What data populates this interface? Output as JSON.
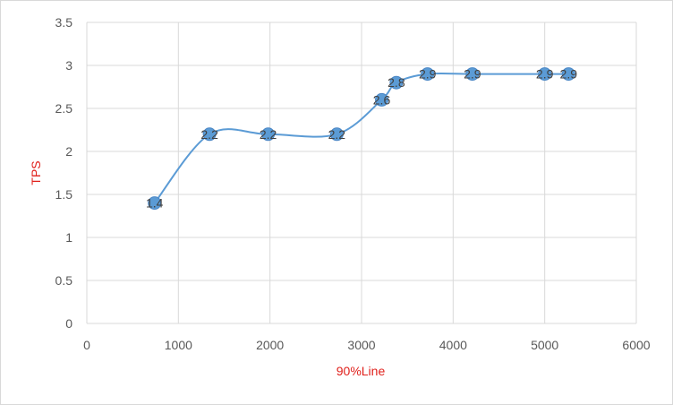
{
  "chart_data": {
    "type": "scatter",
    "title": "",
    "xlabel": "90%Line",
    "ylabel": "TPS",
    "xlim": [
      0,
      6000
    ],
    "ylim": [
      0,
      3.5
    ],
    "x_ticks": [
      "0",
      "1000",
      "2000",
      "3000",
      "4000",
      "5000",
      "6000"
    ],
    "y_ticks": [
      "0",
      "0.5",
      "1",
      "1.5",
      "2",
      "2.5",
      "3",
      "3.5"
    ],
    "grid": true,
    "smooth_line": true,
    "series": [
      {
        "x": [
          740,
          1340,
          1980,
          2730,
          3220,
          3380,
          3720,
          4210,
          5000,
          5260
        ],
        "y": [
          1.4,
          2.2,
          2.2,
          2.2,
          2.6,
          2.8,
          2.9,
          2.9,
          2.9,
          2.9
        ],
        "labels": [
          "1.4",
          "2.2",
          "2.2",
          "2.2",
          "2.6",
          "2.8",
          "2.9",
          "2.9",
          "2.9",
          "2.9"
        ]
      }
    ],
    "colors": {
      "line": "#5b9bd5",
      "marker": "#5b9bd5",
      "axis_title": "#e0201b"
    }
  }
}
